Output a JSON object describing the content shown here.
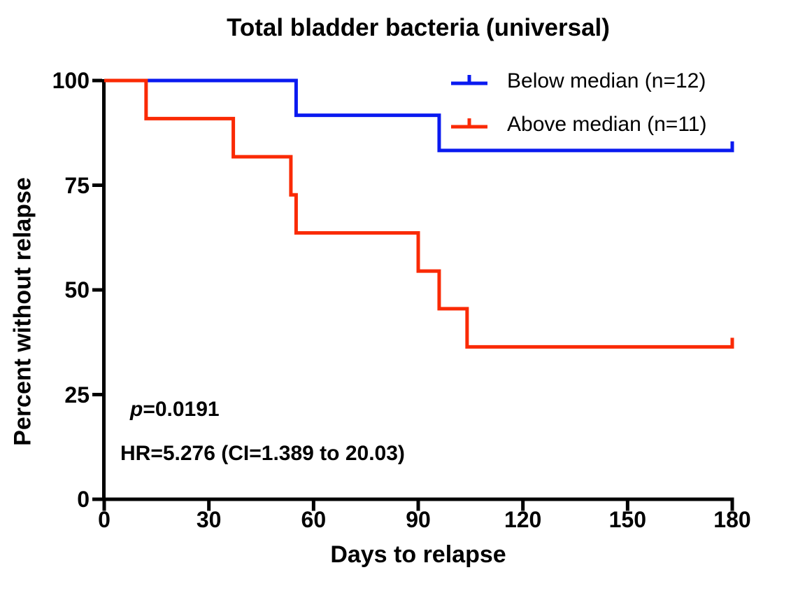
{
  "title": "Total bladder bacteria (universal)",
  "annotations": {
    "p_symbol": "p",
    "p_value": "=0.0191",
    "hr": "HR=5.276 (CI=1.389 to 20.03)"
  },
  "chart_data": {
    "type": "line",
    "subtype": "kaplan-meier-step",
    "title": "Total bladder bacteria (universal)",
    "xlabel": "Days to relapse",
    "ylabel": "Percent without relapse",
    "xlim": [
      0,
      180
    ],
    "ylim": [
      0,
      100
    ],
    "x_ticks": [
      0,
      30,
      60,
      90,
      120,
      150,
      180
    ],
    "y_ticks": [
      0,
      25,
      50,
      75,
      100
    ],
    "grid": false,
    "legend_position": "top-right",
    "axis_color": "#000000",
    "series": [
      {
        "name": "below_median",
        "label": "Below median (n=12)",
        "n": 12,
        "color": "#0a1af0",
        "end_censor_tick_at_last_point": true,
        "points": [
          [
            0,
            100
          ],
          [
            55,
            100
          ],
          [
            55,
            91.7
          ],
          [
            96,
            91.7
          ],
          [
            96,
            83.3
          ],
          [
            180,
            83.3
          ]
        ]
      },
      {
        "name": "above_median",
        "label": "Above median (n=11)",
        "n": 11,
        "color": "#fa2a04",
        "end_censor_tick_at_last_point": true,
        "points": [
          [
            0,
            100
          ],
          [
            12,
            100
          ],
          [
            12,
            90.9
          ],
          [
            37,
            90.9
          ],
          [
            37,
            81.8
          ],
          [
            53.5,
            81.8
          ],
          [
            53.5,
            72.7
          ],
          [
            55,
            72.7
          ],
          [
            55,
            63.6
          ],
          [
            90,
            63.6
          ],
          [
            90,
            54.5
          ],
          [
            96,
            54.5
          ],
          [
            96,
            45.5
          ],
          [
            104,
            45.5
          ],
          [
            104,
            36.4
          ],
          [
            180,
            36.4
          ]
        ]
      }
    ],
    "annotations": [
      "p=0.0191",
      "HR=5.276 (CI=1.389 to 20.03)"
    ]
  }
}
